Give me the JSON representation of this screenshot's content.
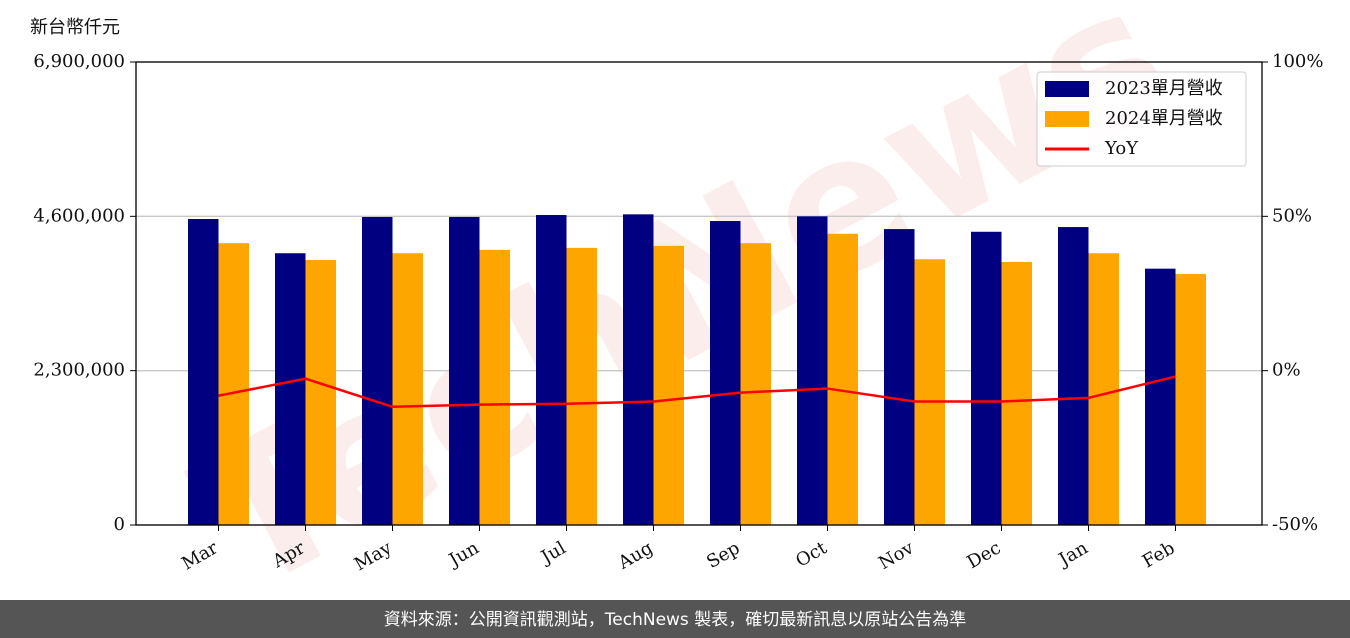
{
  "chart_data": {
    "type": "bar_line",
    "ylabel": "新台幣仟元",
    "categories": [
      "Mar",
      "Apr",
      "May",
      "Jun",
      "Jul",
      "Aug",
      "Sep",
      "Oct",
      "Nov",
      "Dec",
      "Jan",
      "Feb"
    ],
    "series": [
      {
        "name": "2023單月營收",
        "color": "#000080",
        "type": "bar",
        "values": [
          4560000,
          4050000,
          4590000,
          4590000,
          4620000,
          4630000,
          4530000,
          4600000,
          4410000,
          4370000,
          4440000,
          3820000
        ]
      },
      {
        "name": "2024單月營收",
        "color": "#ffa500",
        "type": "bar",
        "values": [
          4200000,
          3950000,
          4050000,
          4100000,
          4130000,
          4160000,
          4200000,
          4340000,
          3960000,
          3920000,
          4050000,
          3740000
        ]
      },
      {
        "name": "YoY",
        "color": "#ff0000",
        "type": "line",
        "axis": "y2",
        "values": [
          -8.1,
          -2.6,
          -11.7,
          -11,
          -10.7,
          -10,
          -7.1,
          -5.8,
          -10,
          -10,
          -8.8,
          -1.9
        ]
      }
    ],
    "ylim": [
      0,
      6900000
    ],
    "yticks": [
      0,
      {
        "value": 2300000,
        "label": "2,300,000"
      },
      {
        "value": 4600000,
        "label": "4,600,000"
      },
      {
        "value": 6900000,
        "label": "6,900,000"
      }
    ],
    "y2lim": [
      -50,
      100
    ],
    "y2ticks": [
      {
        "value": -50,
        "label": "-50%"
      },
      {
        "value": 0,
        "label": "0%"
      },
      {
        "value": 50,
        "label": "50%"
      },
      {
        "value": 100,
        "label": "100%"
      }
    ],
    "grid": true,
    "legend": "upper right",
    "watermark": "TechNews",
    "footer": "資料來源：公開資訊觀測站，TechNews 製表，確切最新訊息以原站公告為準"
  }
}
